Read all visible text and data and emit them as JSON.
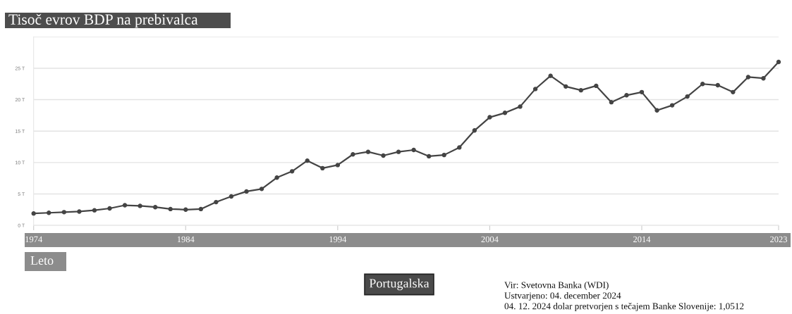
{
  "chart_data": {
    "type": "line",
    "title": "Tisoč evrov BDP na prebivalca",
    "xlabel": "Leto",
    "x": [
      1974,
      1975,
      1976,
      1977,
      1978,
      1979,
      1980,
      1981,
      1982,
      1983,
      1984,
      1985,
      1986,
      1987,
      1988,
      1989,
      1990,
      1991,
      1992,
      1993,
      1994,
      1995,
      1996,
      1997,
      1998,
      1999,
      2000,
      2001,
      2002,
      2003,
      2004,
      2005,
      2006,
      2007,
      2008,
      2009,
      2010,
      2011,
      2012,
      2013,
      2014,
      2015,
      2016,
      2017,
      2018,
      2019,
      2020,
      2021,
      2022,
      2023
    ],
    "series": [
      {
        "name": "Portugalska",
        "color": "#444444",
        "values": [
          1.9,
          2.0,
          2.1,
          2.2,
          2.4,
          2.7,
          3.2,
          3.1,
          2.9,
          2.6,
          2.5,
          2.6,
          3.7,
          4.6,
          5.4,
          5.8,
          7.6,
          8.6,
          10.3,
          9.1,
          9.6,
          11.3,
          11.7,
          11.1,
          11.7,
          12.0,
          11.0,
          11.2,
          12.4,
          15.1,
          17.2,
          17.9,
          18.9,
          21.7,
          23.8,
          22.1,
          21.5,
          22.2,
          19.6,
          20.7,
          21.2,
          18.3,
          19.1,
          20.5,
          22.5,
          22.3,
          21.2,
          23.6,
          23.4,
          26.0
        ]
      }
    ],
    "xlim": [
      1974,
      2023
    ],
    "xticks": [
      1974,
      1984,
      1994,
      2004,
      2014,
      2023
    ],
    "ylim": [
      0,
      30
    ],
    "yticks": [
      {
        "value": 0,
        "label": "0 T"
      },
      {
        "value": 5,
        "label": "5 T"
      },
      {
        "value": 10,
        "label": "10 T"
      },
      {
        "value": 15,
        "label": "15 T"
      },
      {
        "value": 20,
        "label": "20 T"
      },
      {
        "value": 25,
        "label": "25 T"
      },
      {
        "value": 30,
        "label": null
      }
    ],
    "grid": "y",
    "legend": "bottom",
    "marker": "circle",
    "line_style": "solid",
    "annotations": [
      "Vir: Svetovna Banka (WDI)",
      "Ustvarjeno: 04. december 2024",
      "04. 12. 2024 dolar pretvorjen s tečajem Banke Slovenije: 1,0512"
    ]
  }
}
